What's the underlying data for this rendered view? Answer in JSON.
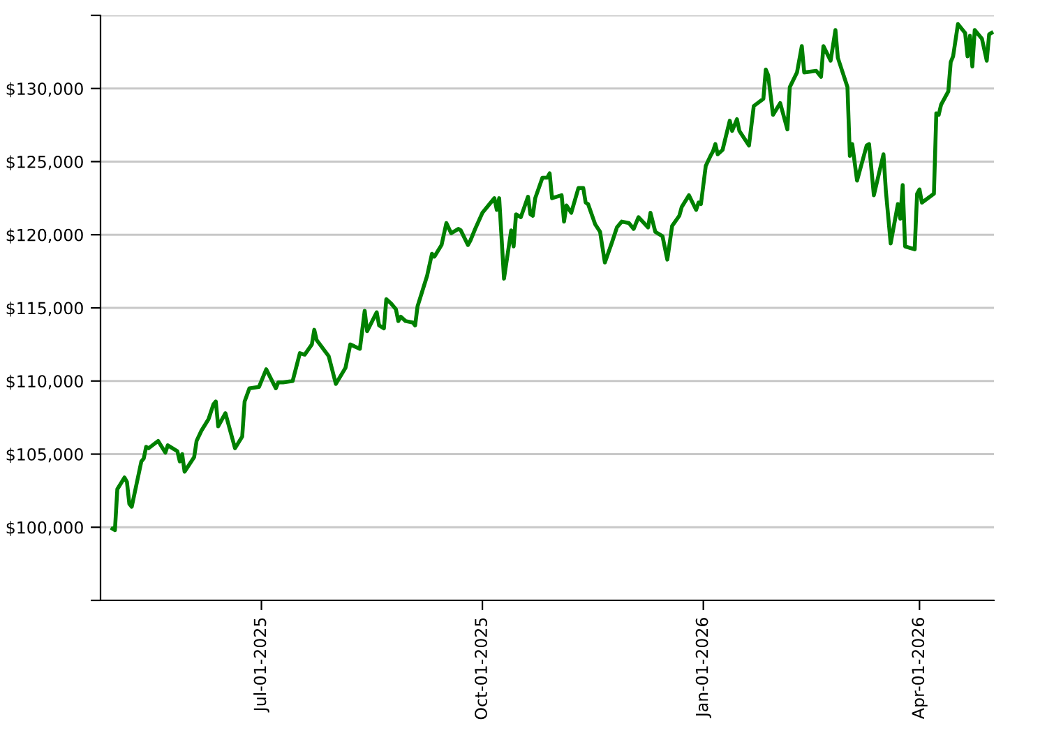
{
  "chart_data": {
    "type": "line",
    "x": [
      "2025-04-30",
      "2025-05-01",
      "2025-05-02",
      "2025-05-05",
      "2025-05-06",
      "2025-05-07",
      "2025-05-08",
      "2025-05-12",
      "2025-05-13",
      "2025-05-14",
      "2025-05-15",
      "2025-05-19",
      "2025-05-22",
      "2025-05-23",
      "2025-05-27",
      "2025-05-28",
      "2025-05-29",
      "2025-05-30",
      "2025-06-03",
      "2025-06-04",
      "2025-06-06",
      "2025-06-09",
      "2025-06-11",
      "2025-06-12",
      "2025-06-13",
      "2025-06-16",
      "2025-06-18",
      "2025-06-20",
      "2025-06-23",
      "2025-06-24",
      "2025-06-26",
      "2025-06-30",
      "2025-07-03",
      "2025-07-07",
      "2025-07-08",
      "2025-07-10",
      "2025-07-14",
      "2025-07-17",
      "2025-07-19",
      "2025-07-22",
      "2025-07-23",
      "2025-07-24",
      "2025-07-29",
      "2025-08-01",
      "2025-08-05",
      "2025-08-07",
      "2025-08-11",
      "2025-08-13",
      "2025-08-14",
      "2025-08-18",
      "2025-08-19",
      "2025-08-21",
      "2025-08-22",
      "2025-08-24",
      "2025-08-26",
      "2025-08-27",
      "2025-08-28",
      "2025-08-30",
      "2025-09-02",
      "2025-09-03",
      "2025-09-04",
      "2025-09-08",
      "2025-09-10",
      "2025-09-11",
      "2025-09-14",
      "2025-09-16",
      "2025-09-18",
      "2025-09-21",
      "2025-09-22",
      "2025-09-25",
      "2025-09-26",
      "2025-09-28",
      "2025-10-01",
      "2025-10-06",
      "2025-10-07",
      "2025-10-08",
      "2025-10-10",
      "2025-10-13",
      "2025-10-14",
      "2025-10-15",
      "2025-10-17",
      "2025-10-20",
      "2025-10-21",
      "2025-10-22",
      "2025-10-23",
      "2025-10-26",
      "2025-10-28",
      "2025-10-29",
      "2025-10-30",
      "2025-11-03",
      "2025-11-04",
      "2025-11-05",
      "2025-11-07",
      "2025-11-10",
      "2025-11-12",
      "2025-11-13",
      "2025-11-14",
      "2025-11-17",
      "2025-11-19",
      "2025-11-21",
      "2025-11-24",
      "2025-11-26",
      "2025-11-28",
      "2025-12-01",
      "2025-12-03",
      "2025-12-05",
      "2025-12-09",
      "2025-12-10",
      "2025-12-12",
      "2025-12-15",
      "2025-12-17",
      "2025-12-19",
      "2025-12-22",
      "2025-12-23",
      "2025-12-26",
      "2025-12-29",
      "2025-12-30",
      "2025-12-31",
      "2026-01-02",
      "2026-01-04",
      "2026-01-05",
      "2026-01-06",
      "2026-01-07",
      "2026-01-09",
      "2026-01-12",
      "2026-01-13",
      "2026-01-15",
      "2026-01-16",
      "2026-01-20",
      "2026-01-22",
      "2026-01-26",
      "2026-01-27",
      "2026-01-28",
      "2026-01-30",
      "2026-02-02",
      "2026-02-05",
      "2026-02-06",
      "2026-02-09",
      "2026-02-11",
      "2026-02-12",
      "2026-02-17",
      "2026-02-19",
      "2026-02-20",
      "2026-02-23",
      "2026-02-25",
      "2026-02-26",
      "2026-03-02",
      "2026-03-03",
      "2026-03-04",
      "2026-03-06",
      "2026-03-10",
      "2026-03-11",
      "2026-03-13",
      "2026-03-17",
      "2026-03-18",
      "2026-03-20",
      "2026-03-23",
      "2026-03-24",
      "2026-03-25",
      "2026-03-26",
      "2026-03-30",
      "2026-03-31",
      "2026-04-01",
      "2026-04-02",
      "2026-04-07",
      "2026-04-08",
      "2026-04-09",
      "2026-04-10",
      "2026-04-13",
      "2026-04-14",
      "2026-04-15",
      "2026-04-17",
      "2026-04-20",
      "2026-04-21",
      "2026-04-22",
      "2026-04-23",
      "2026-04-24",
      "2026-04-27",
      "2026-04-29",
      "2026-04-30",
      "2026-05-01"
    ],
    "series": [
      {
        "color": "#008000",
        "values": [
          99900,
          99800,
          102600,
          103400,
          103100,
          101600,
          101400,
          104500,
          104700,
          105500,
          105400,
          105900,
          105100,
          105600,
          105200,
          104500,
          105000,
          103800,
          104800,
          105900,
          106600,
          107400,
          108400,
          108600,
          106900,
          107800,
          106600,
          105400,
          106200,
          108600,
          109500,
          109600,
          110800,
          109500,
          109900,
          109900,
          110000,
          111900,
          111800,
          112500,
          113500,
          112800,
          111700,
          109800,
          110900,
          112500,
          112200,
          114800,
          113400,
          114700,
          113800,
          113600,
          115600,
          115300,
          114900,
          114100,
          114400,
          114100,
          114000,
          113800,
          115100,
          117200,
          118700,
          118500,
          119300,
          120800,
          120100,
          120400,
          120300,
          119300,
          119600,
          120400,
          121500,
          122500,
          121700,
          122500,
          117000,
          120300,
          119200,
          121400,
          121200,
          122600,
          121400,
          121300,
          122500,
          123900,
          123900,
          124200,
          122500,
          122700,
          120900,
          122000,
          121500,
          123200,
          123200,
          122200,
          122100,
          120700,
          120200,
          118100,
          119500,
          120500,
          120900,
          120800,
          120400,
          121200,
          120500,
          121500,
          120200,
          119900,
          118300,
          120600,
          121300,
          121900,
          122700,
          121700,
          122200,
          122100,
          124700,
          125400,
          125700,
          126200,
          125500,
          125800,
          127800,
          127100,
          127900,
          127100,
          126100,
          128800,
          129300,
          131300,
          130900,
          128200,
          129000,
          127200,
          130100,
          131100,
          132900,
          131100,
          131200,
          130800,
          132900,
          131900,
          134000,
          132100,
          130100,
          125400,
          126200,
          123700,
          126100,
          126200,
          122700,
          125500,
          123000,
          119400,
          122100,
          121100,
          123400,
          119200,
          119000,
          122800,
          123100,
          122200,
          122800,
          128300,
          128200,
          128900,
          129800,
          131800,
          132200,
          134400,
          133800,
          132200,
          133600,
          131500,
          134000,
          133400,
          131900,
          133700,
          133800
        ]
      }
    ],
    "xlim": [
      "2025-04-25",
      "2026-05-02"
    ],
    "xticks": [
      {
        "value": "2025-07-01",
        "label": "Jul-01-2025"
      },
      {
        "value": "2025-10-01",
        "label": "Oct-01-2025"
      },
      {
        "value": "2026-01-01",
        "label": "Jan-01-2026"
      },
      {
        "value": "2026-04-01",
        "label": "Apr-01-2026"
      }
    ],
    "ylim": [
      95000,
      135000
    ],
    "yticks": [
      {
        "value": 95000,
        "label": null
      },
      {
        "value": 100000,
        "label": "$100,000"
      },
      {
        "value": 105000,
        "label": "$105,000"
      },
      {
        "value": 110000,
        "label": "$110,000"
      },
      {
        "value": 115000,
        "label": "$115,000"
      },
      {
        "value": 120000,
        "label": "$120,000"
      },
      {
        "value": 125000,
        "label": "$125,000"
      },
      {
        "value": 130000,
        "label": "$130,000"
      },
      {
        "value": 135000,
        "label": null
      }
    ],
    "grid": "y",
    "line_style": "solid",
    "marker": "none"
  }
}
